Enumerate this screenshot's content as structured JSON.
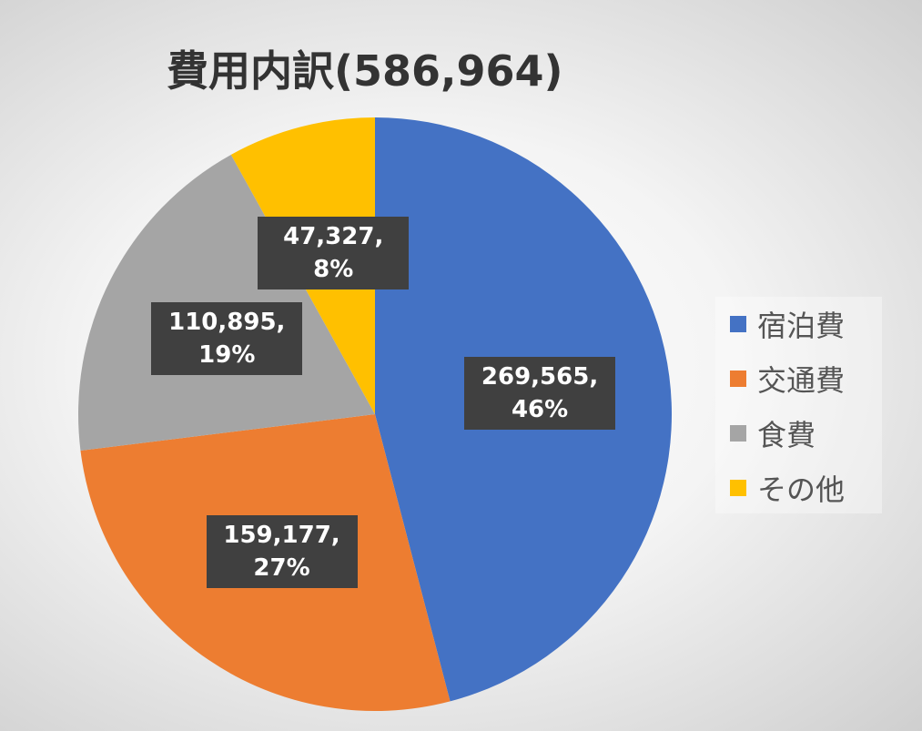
{
  "chart_data": {
    "type": "pie",
    "title": "費用内訳(586,964)",
    "categories": [
      "宿泊費",
      "交通費",
      "食費",
      "その他"
    ],
    "values": [
      269565,
      159177,
      110895,
      47327
    ],
    "value_labels": [
      "269,565, 46%",
      "159,177, 27%",
      "110,895, 19%",
      "47,327, 8%"
    ],
    "colors": [
      "#4472c4",
      "#ed7d31",
      "#a5a5a5",
      "#ffc000"
    ],
    "legend": "right"
  }
}
